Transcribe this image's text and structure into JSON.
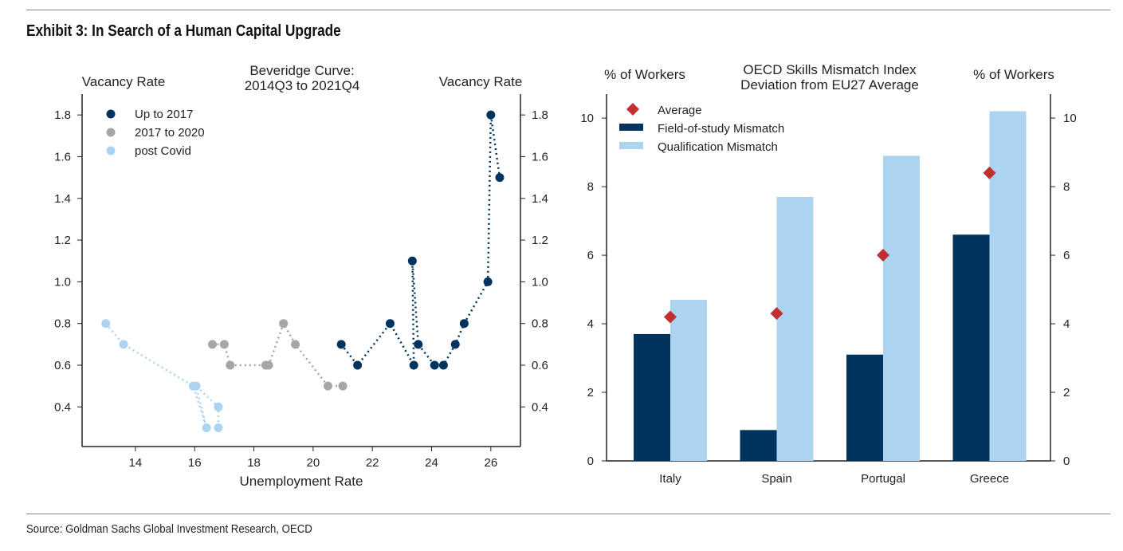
{
  "title": "Exhibit 3: In Search of a Human Capital Upgrade",
  "source": "Source: Goldman Sachs Global Investment Research, OECD",
  "colors": {
    "dark_navy": "#00335e",
    "gray": "#a6a6a6",
    "light_blue": "#acd3ef",
    "red": "#c0302f"
  },
  "chart_data": [
    {
      "type": "scatter",
      "title": [
        "Beveridge Curve:",
        "2014Q3 to 2021Q4"
      ],
      "xlabel": "Unemployment Rate",
      "ylabel_left": "Vacancy Rate",
      "ylabel_right": "Vacancy Rate",
      "xlim": [
        12.2,
        27.0
      ],
      "ylim": [
        0.21,
        1.9
      ],
      "xticks": [
        14,
        16,
        18,
        20,
        22,
        24,
        26
      ],
      "yticks": [
        0.4,
        0.6,
        0.8,
        1.0,
        1.2,
        1.4,
        1.6,
        1.8
      ],
      "grid": false,
      "legend_placement": "top-left",
      "connected": "dotted",
      "series": [
        {
          "name": "Up to 2017",
          "color": "#00335e",
          "points": [
            [
              20.95,
              0.7
            ],
            [
              21.5,
              0.6
            ],
            [
              22.6,
              0.8
            ],
            [
              23.4,
              0.6
            ],
            [
              23.35,
              1.1
            ],
            [
              23.55,
              0.7
            ],
            [
              24.1,
              0.6
            ],
            [
              24.4,
              0.6
            ],
            [
              24.8,
              0.7
            ],
            [
              25.1,
              0.8
            ],
            [
              25.9,
              1.0
            ],
            [
              26.0,
              1.8
            ],
            [
              26.3,
              1.5
            ]
          ]
        },
        {
          "name": "2017 to 2020",
          "color": "#a6a6a6",
          "points": [
            [
              16.6,
              0.7
            ],
            [
              17.0,
              0.7
            ],
            [
              17.2,
              0.6
            ],
            [
              18.4,
              0.6
            ],
            [
              18.5,
              0.6
            ],
            [
              19.0,
              0.8
            ],
            [
              19.4,
              0.7
            ],
            [
              20.5,
              0.5
            ],
            [
              21.0,
              0.5
            ]
          ]
        },
        {
          "name": "post Covid",
          "color": "#acd3ef",
          "points": [
            [
              13.0,
              0.8
            ],
            [
              13.6,
              0.7
            ],
            [
              15.95,
              0.5
            ],
            [
              16.4,
              0.3
            ],
            [
              16.05,
              0.5
            ],
            [
              16.8,
              0.4
            ],
            [
              16.8,
              0.3
            ]
          ]
        }
      ]
    },
    {
      "type": "bar",
      "title": [
        "OECD Skills Mismatch Index",
        "Deviation from EU27 Average"
      ],
      "ylabel_left": "% of Workers",
      "ylabel_right": "% of Workers",
      "ylim": [
        0,
        10.7
      ],
      "yticks": [
        0,
        2,
        4,
        6,
        8,
        10
      ],
      "grid": false,
      "legend_placement": "top-left",
      "categories": [
        "Italy",
        "Spain",
        "Portugal",
        "Greece"
      ],
      "series": [
        {
          "name": "Field-of-study Mismatch",
          "type": "bar",
          "color": "#00335e",
          "values": [
            3.7,
            0.9,
            3.1,
            6.6
          ]
        },
        {
          "name": "Qualification Mismatch",
          "type": "bar",
          "color": "#acd3ef",
          "values": [
            4.7,
            7.7,
            8.9,
            10.2
          ]
        },
        {
          "name": "Average",
          "type": "marker-diamond",
          "color": "#c0302f",
          "values": [
            4.2,
            4.3,
            6.0,
            8.4
          ]
        }
      ]
    }
  ]
}
